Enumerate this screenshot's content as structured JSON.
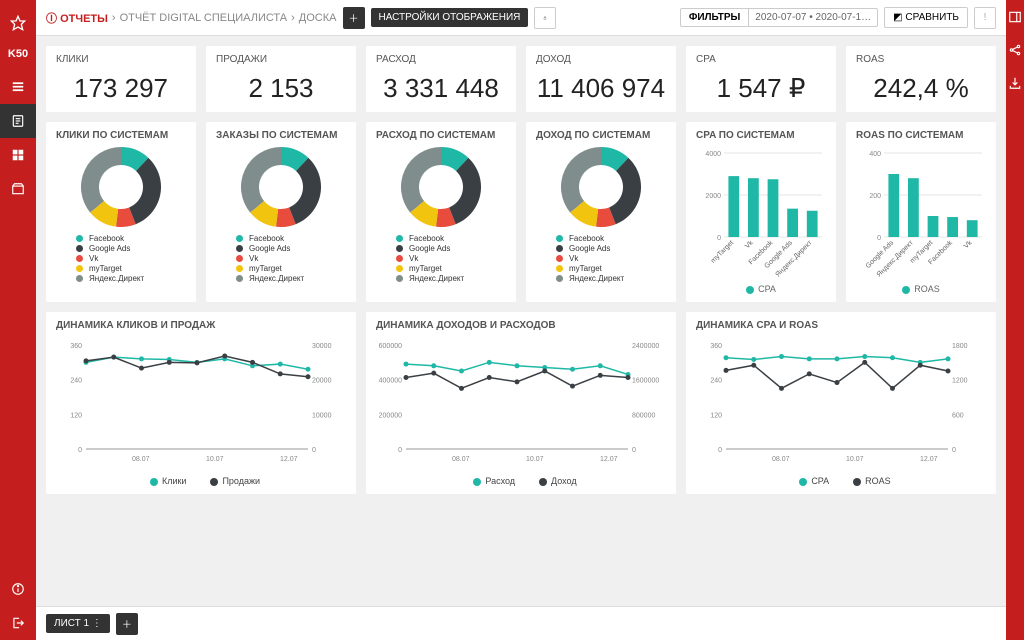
{
  "colors": {
    "brand": "#c41e1e",
    "teal": "#1fb8a6",
    "dark": "#3a3f44",
    "red": "#e74c3c",
    "yellow": "#f1c40f",
    "grey": "#7f8d8d",
    "grid": "#e5e5e5",
    "axis": "#999999"
  },
  "sidebar_left": {
    "logo": "K50"
  },
  "topbar": {
    "back_label": "ОТЧЕТЫ",
    "crumb1": "ОТЧЁТ DIGITAL СПЕЦИАЛИСТА",
    "crumb2": "ДОСКА",
    "settings": "НАСТРОЙКИ ОТОБРАЖЕНИЯ",
    "filters": "ФИЛЬТРЫ",
    "date_range": "2020-07-07 • 2020-07-1…",
    "compare": "СРАВНИТЬ"
  },
  "kpis": [
    {
      "title": "КЛИКИ",
      "value": "173 297"
    },
    {
      "title": "ПРОДАЖИ",
      "value": "2 153"
    },
    {
      "title": "РАСХОД",
      "value": "3 331 448"
    },
    {
      "title": "ДОХОД",
      "value": "11 406 974"
    },
    {
      "title": "CPA",
      "value": "1 547 ₽"
    },
    {
      "title": "ROAS",
      "value": "242,4 %"
    }
  ],
  "donuts": [
    {
      "title": "КЛИКИ ПО СИСТЕМАМ"
    },
    {
      "title": "ЗАКАЗЫ ПО СИСТЕМАМ"
    },
    {
      "title": "РАСХОД ПО СИСТЕМАМ"
    },
    {
      "title": "ДОХОД ПО СИСТЕМАМ"
    }
  ],
  "donut_slices": [
    {
      "label": "Facebook",
      "color": "#1fb8a6",
      "value": 12
    },
    {
      "label": "Google Ads",
      "color": "#3a3f44",
      "value": 32
    },
    {
      "label": "Vk",
      "color": "#e74c3c",
      "value": 8
    },
    {
      "label": "myTarget",
      "color": "#f1c40f",
      "value": 12
    },
    {
      "label": "Яндекс.Директ",
      "color": "#7f8d8d",
      "value": 36
    }
  ],
  "bars": [
    {
      "title": "CPA ПО СИСТЕМАМ",
      "legend": "CPA",
      "ymax": 4000,
      "ystep": 2000,
      "data": [
        {
          "label": "myTarget",
          "value": 2900
        },
        {
          "label": "Vk",
          "value": 2800
        },
        {
          "label": "Facebook",
          "value": 2750
        },
        {
          "label": "Google Ads",
          "value": 1350
        },
        {
          "label": "Яндекс.Директ",
          "value": 1250
        }
      ]
    },
    {
      "title": "ROAS ПО СИСТЕМАМ",
      "legend": "ROAS",
      "ymax": 400,
      "ystep": 200,
      "data": [
        {
          "label": "Google Ads",
          "value": 300
        },
        {
          "label": "Яндекс.Директ",
          "value": 280
        },
        {
          "label": "myTarget",
          "value": 100
        },
        {
          "label": "Facebook",
          "value": 95
        },
        {
          "label": "Vk",
          "value": 80
        }
      ]
    }
  ],
  "lines": [
    {
      "title": "ДИНАМИКА КЛИКОВ И ПРОДАЖ",
      "x": [
        "08.07",
        "10.07",
        "12.07"
      ],
      "left": {
        "label": "Продажи",
        "min": 0,
        "max": 360,
        "step": 120
      },
      "right": {
        "label": "Клики",
        "min": 0,
        "max": 30000,
        "step": 10000
      },
      "series": [
        {
          "name": "Клики",
          "color": "#1fb8a6",
          "axis": "right",
          "points": [
            25000,
            26500,
            26000,
            25800,
            25000,
            26000,
            24000,
            24500,
            23000
          ]
        },
        {
          "name": "Продажи",
          "color": "#3a3f44",
          "axis": "left",
          "points": [
            305,
            318,
            280,
            300,
            298,
            322,
            300,
            260,
            250
          ]
        }
      ]
    },
    {
      "title": "ДИНАМИКА ДОХОДОВ И РАСХОДОВ",
      "x": [
        "08.07",
        "10.07",
        "12.07"
      ],
      "left": {
        "label": "Расход",
        "min": 0,
        "max": 600000,
        "step": 200000
      },
      "right": {
        "label": "Доход",
        "min": 0,
        "max": 2400000,
        "step": 800000
      },
      "series": [
        {
          "name": "Расход",
          "color": "#1fb8a6",
          "axis": "left",
          "points": [
            490000,
            480000,
            450000,
            500000,
            480000,
            470000,
            460000,
            480000,
            430000
          ]
        },
        {
          "name": "Доход",
          "color": "#3a3f44",
          "axis": "right",
          "points": [
            1650000,
            1750000,
            1400000,
            1650000,
            1550000,
            1800000,
            1450000,
            1700000,
            1650000
          ]
        }
      ]
    },
    {
      "title": "ДИНАМИКА CPA И ROAS",
      "x": [
        "08.07",
        "10.07",
        "12.07"
      ],
      "left": {
        "label": "ROAS",
        "min": 0,
        "max": 360,
        "step": 120
      },
      "right": {
        "label": "CPA",
        "min": 0,
        "max": 1800,
        "step": 600
      },
      "series": [
        {
          "name": "CPA",
          "color": "#1fb8a6",
          "axis": "right",
          "points": [
            1580,
            1550,
            1600,
            1560,
            1560,
            1600,
            1580,
            1500,
            1560
          ]
        },
        {
          "name": "ROAS",
          "color": "#3a3f44",
          "axis": "left",
          "points": [
            272,
            290,
            210,
            260,
            230,
            300,
            210,
            290,
            270
          ]
        }
      ]
    }
  ],
  "bottombar": {
    "sheet": "ЛИСТ 1"
  }
}
